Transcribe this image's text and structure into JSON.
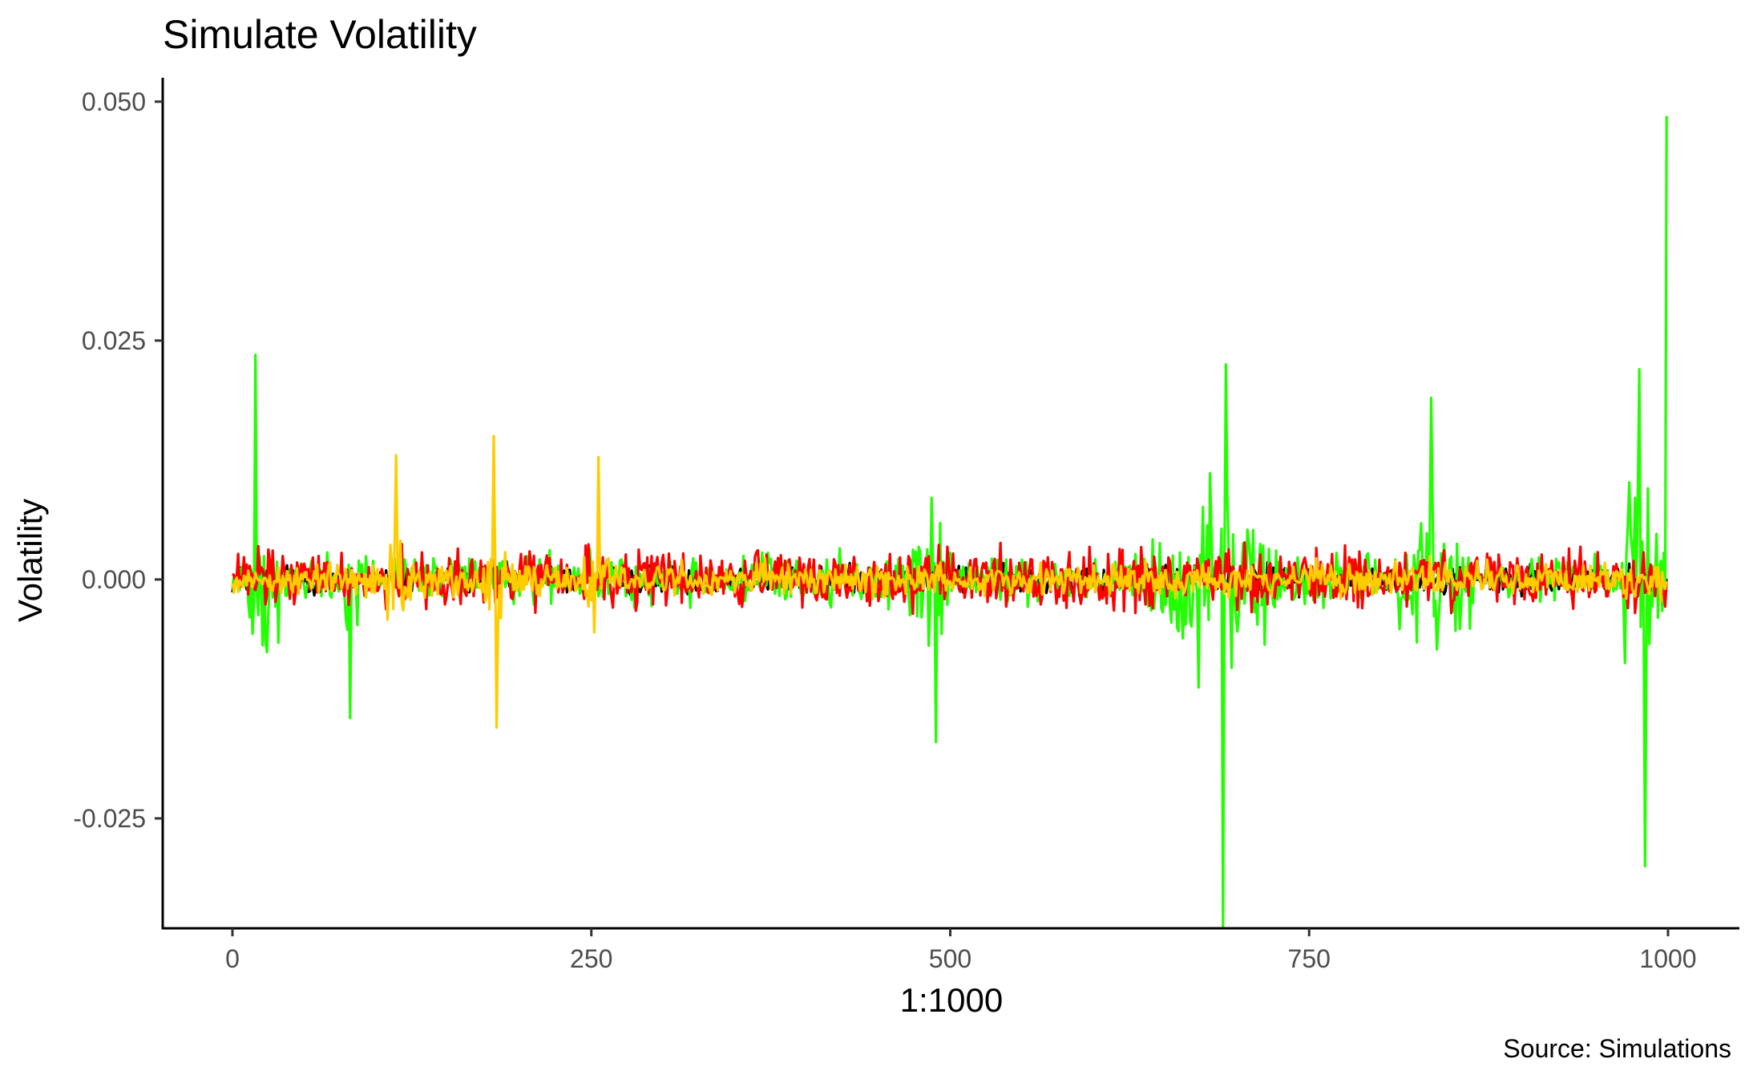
{
  "chart_data": {
    "type": "line",
    "title": "Simulate Volatility",
    "xlabel": "1:1000",
    "ylabel": "Volatility",
    "caption": "Source: Simulations",
    "xlim": [
      0,
      1000
    ],
    "ylim": [
      -0.0365,
      0.0525
    ],
    "x_ticks": [
      0,
      250,
      500,
      750,
      1000
    ],
    "x_tick_labels": [
      "0",
      "250",
      "500",
      "750",
      "1000"
    ],
    "y_ticks": [
      -0.025,
      0.0,
      0.025,
      0.05
    ],
    "y_tick_labels": [
      "-0.025",
      "0.000",
      "0.025",
      "0.050"
    ],
    "grid": false,
    "legend": "none",
    "n_points": 1000,
    "series": [
      {
        "color": "#000000",
        "base_amplitude": 0.0022,
        "bursts": []
      },
      {
        "color": "#22ff00",
        "base_amplitude": 0.0035,
        "bursts": [
          {
            "start": 8,
            "end": 40,
            "amp": 0.012
          },
          {
            "start": 70,
            "end": 95,
            "amp": 0.012
          },
          {
            "start": 470,
            "end": 500,
            "amp": 0.014
          },
          {
            "start": 640,
            "end": 730,
            "amp": 0.018
          },
          {
            "start": 800,
            "end": 870,
            "amp": 0.014
          },
          {
            "start": 965,
            "end": 1000,
            "amp": 0.022
          }
        ],
        "extremes": [
          {
            "x": 16,
            "y": 0.0235
          },
          {
            "x": 82,
            "y": -0.0145
          },
          {
            "x": 490,
            "y": -0.017
          },
          {
            "x": 690,
            "y": -0.0365
          },
          {
            "x": 692,
            "y": 0.0225
          },
          {
            "x": 835,
            "y": 0.019
          },
          {
            "x": 984,
            "y": -0.03
          },
          {
            "x": 980,
            "y": 0.022
          },
          {
            "x": 999,
            "y": 0.0485
          }
        ]
      },
      {
        "color": "#ff0000",
        "base_amplitude": 0.0045,
        "bursts": []
      },
      {
        "color": "#ffcc00",
        "base_amplitude": 0.0025,
        "bursts": [
          {
            "start": 105,
            "end": 120,
            "amp": 0.011
          },
          {
            "start": 175,
            "end": 190,
            "amp": 0.013
          },
          {
            "start": 240,
            "end": 265,
            "amp": 0.009
          }
        ],
        "extremes": [
          {
            "x": 114,
            "y": 0.013
          },
          {
            "x": 182,
            "y": 0.015
          },
          {
            "x": 184,
            "y": -0.0155
          },
          {
            "x": 255,
            "y": 0.0128
          }
        ]
      }
    ]
  }
}
